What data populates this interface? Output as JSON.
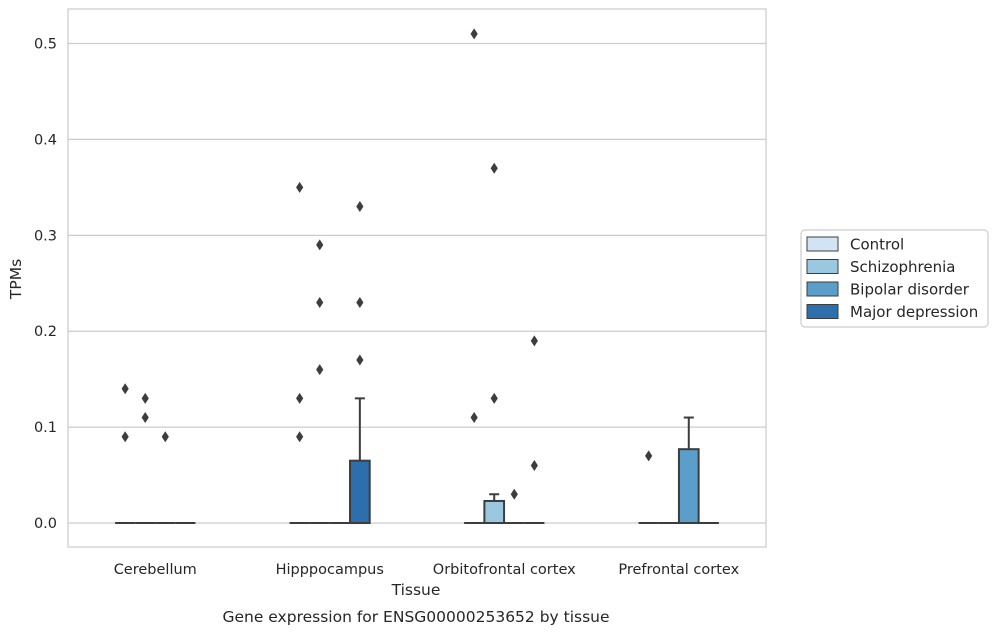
{
  "chart_data": {
    "type": "box",
    "xlabel": "Tissue",
    "ylabel": "TPMs",
    "caption": "Gene expression for ENSG00000253652 by tissue",
    "ylim": [
      -0.025,
      0.536
    ],
    "yticks": [
      "0.0",
      "0.1",
      "0.2",
      "0.3",
      "0.4",
      "0.5"
    ],
    "grid": true,
    "legend_position": "right",
    "categories": [
      "Cerebellum",
      "Hipppocampus",
      "Orbitofrontal cortex",
      "Prefrontal cortex"
    ],
    "series": [
      {
        "name": "Control",
        "color": "#d2e3f3",
        "boxes": [
          {
            "q1": 0,
            "median": 0,
            "q3": 0,
            "whisker_low": 0,
            "whisker_high": 0,
            "outliers": [
              0.14,
              0.09
            ]
          },
          {
            "q1": 0,
            "median": 0,
            "q3": 0,
            "whisker_low": 0,
            "whisker_high": 0,
            "outliers": [
              0.35,
              0.13,
              0.09
            ]
          },
          {
            "q1": 0,
            "median": 0,
            "q3": 0,
            "whisker_low": 0,
            "whisker_high": 0,
            "outliers": [
              0.51,
              0.11
            ]
          },
          {
            "q1": 0,
            "median": 0,
            "q3": 0,
            "whisker_low": 0,
            "whisker_high": 0,
            "outliers": [
              0.07
            ]
          }
        ]
      },
      {
        "name": "Schizophrenia",
        "color": "#9ac8e0",
        "boxes": [
          {
            "q1": 0,
            "median": 0,
            "q3": 0,
            "whisker_low": 0,
            "whisker_high": 0,
            "outliers": [
              0.13,
              0.11
            ]
          },
          {
            "q1": 0,
            "median": 0,
            "q3": 0,
            "whisker_low": 0,
            "whisker_high": 0,
            "outliers": [
              0.29,
              0.23,
              0.16
            ]
          },
          {
            "q1": 0,
            "median": 0,
            "q3": 0.023,
            "whisker_low": 0,
            "whisker_high": 0.03,
            "outliers": [
              0.37,
              0.13
            ]
          },
          {
            "q1": 0,
            "median": 0,
            "q3": 0,
            "whisker_low": 0,
            "whisker_high": 0,
            "outliers": []
          }
        ]
      },
      {
        "name": "Bipolar disorder",
        "color": "#5a9ec9",
        "boxes": [
          {
            "q1": 0,
            "median": 0,
            "q3": 0,
            "whisker_low": 0,
            "whisker_high": 0,
            "outliers": [
              0.09
            ]
          },
          {
            "q1": 0,
            "median": 0,
            "q3": 0,
            "whisker_low": 0,
            "whisker_high": 0,
            "outliers": []
          },
          {
            "q1": 0,
            "median": 0,
            "q3": 0,
            "whisker_low": 0,
            "whisker_high": 0,
            "outliers": [
              0.03
            ]
          },
          {
            "q1": 0,
            "median": 0,
            "q3": 0.077,
            "whisker_low": 0,
            "whisker_high": 0.11,
            "outliers": []
          }
        ]
      },
      {
        "name": "Major depression",
        "color": "#2d6fad",
        "boxes": [
          {
            "q1": 0,
            "median": 0,
            "q3": 0,
            "whisker_low": 0,
            "whisker_high": 0,
            "outliers": []
          },
          {
            "q1": 0,
            "median": 0,
            "q3": 0.065,
            "whisker_low": 0,
            "whisker_high": 0.13,
            "outliers": [
              0.33,
              0.23,
              0.17
            ]
          },
          {
            "q1": 0,
            "median": 0,
            "q3": 0,
            "whisker_low": 0,
            "whisker_high": 0,
            "outliers": [
              0.19,
              0.06
            ]
          },
          {
            "q1": 0,
            "median": 0,
            "q3": 0,
            "whisker_low": 0,
            "whisker_high": 0,
            "outliers": []
          }
        ]
      }
    ]
  }
}
